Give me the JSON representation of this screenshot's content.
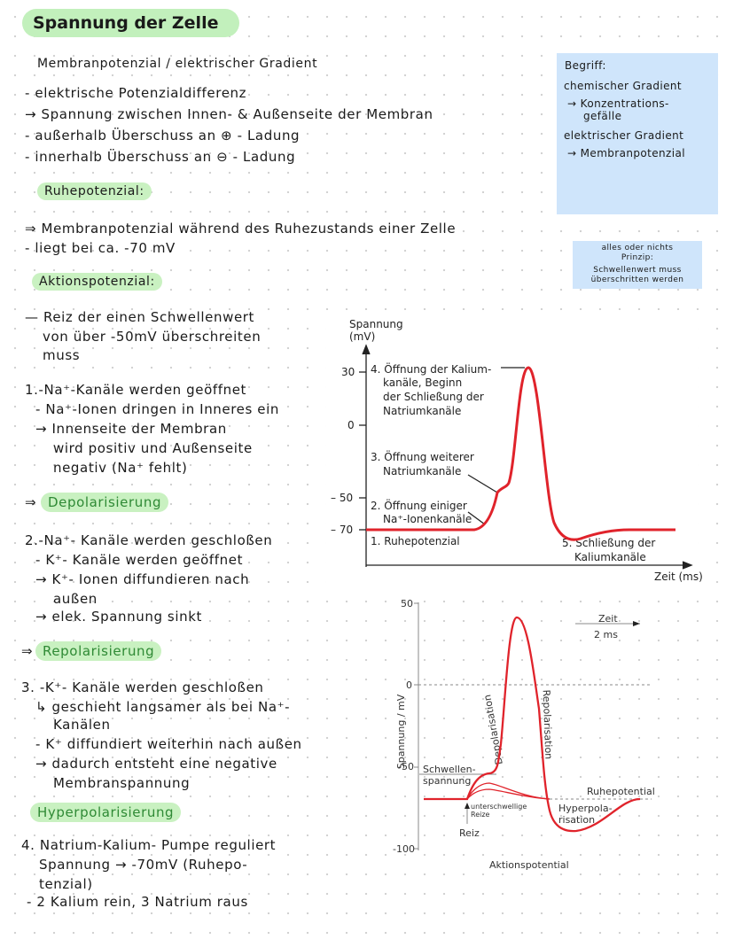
{
  "title": "Spannung der Zelle",
  "lines": [
    "Membranpotenzial / elektrischer Gradient",
    "- elektrische Potenzialdifferenz",
    "→ Spannung zwischen Innen- & Außenseite der Membran",
    "- außerhalb Überschuss an ⊕ - Ladung",
    "- innerhalb Überschuss an ⊖ - Ladung",
    "Ruhepotenzial:",
    "⇒ Membranpotenzial während des Ruhezustands einer Zelle",
    "- liegt bei ca. -70 mV",
    "Aktionspotenzial:",
    "— Reiz der einen Schwellenwert",
    "von über -50mV überschreiten",
    "muss",
    "1.-Na⁺-Kanäle werden geöffnet",
    "- Na⁺-Ionen dringen in Inneres ein",
    "→ Innenseite der Membran",
    "wird positiv und Außenseite",
    "negativ (Na⁺ fehlt)",
    "⇒",
    "Depolarisierung",
    "2.-Na⁺- Kanäle werden geschloßen",
    "- K⁺- Kanäle werden geöffnet",
    "→ K⁺- Ionen diffundieren nach",
    "außen",
    "→ elek. Spannung sinkt",
    "⇒",
    "Repolarisierung",
    "3. -K⁺- Kanäle werden geschloßen",
    "↳ geschieht langsamer als bei Na⁺-",
    "Kanälen",
    "- K⁺ diffundiert weiterhin nach außen",
    "→ dadurch entsteht eine negative",
    "Membranspannung",
    "Hyperpolarisierung",
    "4. Natrium-Kalium- Pumpe reguliert",
    "Spannung → -70mV (Ruhepo-",
    "tenzial)",
    "- 2 Kalium rein, 3 Natrium raus"
  ],
  "note1": [
    "Begriff:",
    "chemischer Gradient",
    "→ Konzentrations-",
    "gefälle",
    "elektrischer Gradient",
    "→ Membranpotenzial"
  ],
  "note2": [
    "alles oder nichts",
    "Prinzip:",
    "Schwellenwert muss",
    "überschritten werden"
  ],
  "figure1": {
    "ylabel1": "Spannung",
    "ylabel2": "(mV)",
    "xlabel": "Zeit (ms)",
    "ticks": [
      "30",
      "0",
      "– 50",
      "– 70"
    ],
    "labels": [
      "4. Öffnung der Kalium-",
      "kanäle, Beginn",
      "der Schließung der",
      "Natriumkanäle",
      "3. Öffnung weiterer",
      "Natriumkanäle",
      "2. Öffnung einiger",
      "Na⁺-Ionenkanäle",
      "1. Ruhepotenzial",
      "5. Schließung der",
      "Kaliumkanäle"
    ],
    "color": "#e0232b"
  },
  "figure2": {
    "ylabel": "Spannung / mV",
    "ticks": [
      "50",
      "0",
      "-50",
      "-100"
    ],
    "scale_label": "Zeit",
    "scale_value": "2 ms",
    "labels": {
      "depol": "Depolarisation",
      "repol": "Repolarisation",
      "threshold1": "Schwellen-",
      "threshold2": "spannung",
      "rest": "Ruhepotential",
      "sub1": "unterschwellige",
      "sub2": "Reize",
      "stim": "Reiz",
      "hyper1": "Hyperpola-",
      "hyper2": "risation"
    },
    "caption": "Aktionspotential",
    "color": "#e0232b"
  }
}
